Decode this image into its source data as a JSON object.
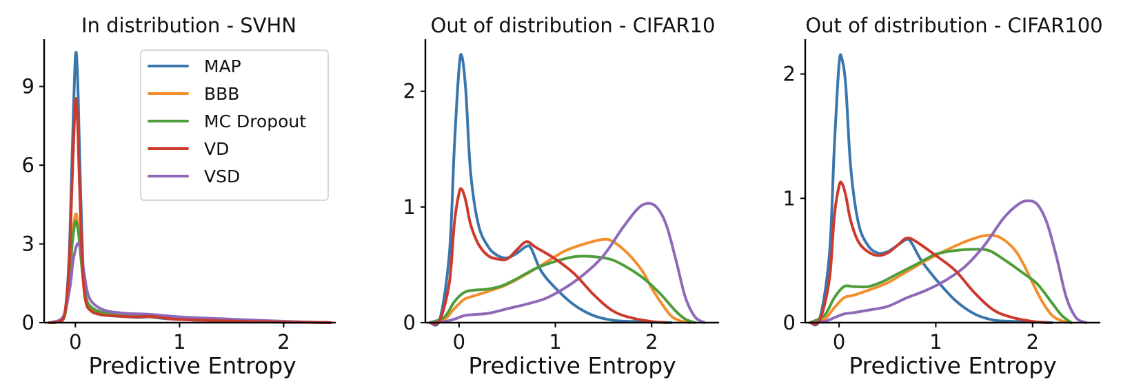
{
  "colors": {
    "MAP": "#3a76ad",
    "BBB": "#f28e2c",
    "MC Dropout": "#4f9d3a",
    "VD": "#cc3a2e",
    "VSD": "#8e69b8"
  },
  "chart_data": [
    {
      "type": "line",
      "title": "In distribution - SVHN",
      "xlabel": "Predictive Entropy",
      "ylabel": "",
      "xlim": [
        -0.3,
        2.5
      ],
      "ylim": [
        0,
        10.8
      ],
      "xticks": [
        0,
        1,
        2
      ],
      "yticks": [
        0,
        3,
        6,
        9
      ],
      "legend": {
        "placement": "top-right",
        "entries": [
          "MAP",
          "BBB",
          "MC Dropout",
          "VD",
          "VSD"
        ]
      },
      "grid": false,
      "series": [
        {
          "name": "MAP",
          "x": [
            -0.25,
            -0.15,
            -0.1,
            -0.06,
            -0.03,
            0,
            0.02,
            0.04,
            0.07,
            0.1,
            0.15,
            0.25,
            0.4,
            0.6,
            0.7,
            0.8,
            1.0,
            1.5,
            2.0,
            2.3,
            2.45
          ],
          "y": [
            0,
            0.05,
            0.4,
            2.5,
            6.5,
            10.1,
            9.5,
            6.5,
            2.5,
            0.9,
            0.45,
            0.3,
            0.25,
            0.2,
            0.22,
            0.18,
            0.12,
            0.06,
            0.02,
            0.01,
            0
          ]
        },
        {
          "name": "BBB",
          "x": [
            -0.25,
            -0.15,
            -0.1,
            -0.06,
            -0.03,
            0,
            0.02,
            0.05,
            0.08,
            0.12,
            0.2,
            0.3,
            0.5,
            0.7,
            0.9,
            1.2,
            1.6,
            2.0,
            2.3,
            2.45
          ],
          "y": [
            0,
            0.05,
            0.3,
            1.5,
            3.2,
            4.1,
            3.9,
            2.8,
            1.4,
            0.7,
            0.45,
            0.35,
            0.25,
            0.25,
            0.18,
            0.12,
            0.08,
            0.04,
            0.01,
            0
          ]
        },
        {
          "name": "MC Dropout",
          "x": [
            -0.25,
            -0.15,
            -0.1,
            -0.06,
            -0.03,
            0,
            0.03,
            0.06,
            0.1,
            0.15,
            0.25,
            0.4,
            0.6,
            0.8,
            1.0,
            1.4,
            1.8,
            2.2,
            2.45
          ],
          "y": [
            0,
            0.05,
            0.3,
            1.5,
            3.0,
            3.85,
            3.4,
            2.2,
            1.0,
            0.6,
            0.4,
            0.3,
            0.25,
            0.2,
            0.15,
            0.1,
            0.06,
            0.02,
            0
          ]
        },
        {
          "name": "VD",
          "x": [
            -0.25,
            -0.15,
            -0.1,
            -0.06,
            -0.03,
            0,
            0.02,
            0.04,
            0.07,
            0.1,
            0.15,
            0.25,
            0.4,
            0.6,
            0.7,
            0.85,
            1.0,
            1.5,
            2.0,
            2.3,
            2.45
          ],
          "y": [
            0,
            0.05,
            0.4,
            2.2,
            5.5,
            8.4,
            7.8,
            5.2,
            2.0,
            0.8,
            0.45,
            0.3,
            0.25,
            0.22,
            0.24,
            0.18,
            0.12,
            0.06,
            0.02,
            0.01,
            0
          ]
        },
        {
          "name": "VSD",
          "x": [
            -0.25,
            -0.15,
            -0.1,
            -0.05,
            -0.02,
            0.02,
            0.05,
            0.08,
            0.12,
            0.18,
            0.3,
            0.5,
            0.7,
            1.0,
            1.4,
            1.8,
            2.1,
            2.35,
            2.45
          ],
          "y": [
            0,
            0.1,
            0.4,
            1.4,
            2.4,
            3.0,
            2.8,
            2.0,
            1.1,
            0.7,
            0.45,
            0.35,
            0.32,
            0.22,
            0.15,
            0.08,
            0.04,
            0.01,
            0
          ]
        }
      ]
    },
    {
      "type": "line",
      "title": "Out of distribution - CIFAR10",
      "xlabel": "Predictive Entropy",
      "ylabel": "",
      "xlim": [
        -0.35,
        2.7
      ],
      "ylim": [
        0,
        2.45
      ],
      "xticks": [
        0,
        1,
        2
      ],
      "yticks": [
        0,
        1,
        2
      ],
      "grid": false,
      "series": [
        {
          "name": "MAP",
          "x": [
            -0.3,
            -0.2,
            -0.1,
            -0.05,
            0,
            0.03,
            0.07,
            0.12,
            0.2,
            0.3,
            0.4,
            0.5,
            0.6,
            0.7,
            0.75,
            0.85,
            1.0,
            1.2,
            1.4,
            1.6,
            1.8,
            2.0,
            2.2
          ],
          "y": [
            0,
            0.03,
            0.6,
            1.5,
            2.2,
            2.3,
            2.0,
            1.3,
            0.85,
            0.66,
            0.58,
            0.56,
            0.6,
            0.66,
            0.64,
            0.45,
            0.3,
            0.15,
            0.06,
            0.02,
            0.01,
            0.005,
            0
          ]
        },
        {
          "name": "BBB",
          "x": [
            -0.3,
            -0.15,
            -0.05,
            0.05,
            0.15,
            0.3,
            0.5,
            0.7,
            0.9,
            1.1,
            1.3,
            1.5,
            1.6,
            1.75,
            1.9,
            2.0,
            2.1,
            2.2,
            2.3,
            2.4
          ],
          "y": [
            0,
            0.03,
            0.12,
            0.2,
            0.23,
            0.27,
            0.33,
            0.42,
            0.52,
            0.62,
            0.68,
            0.72,
            0.7,
            0.6,
            0.45,
            0.3,
            0.17,
            0.06,
            0.015,
            0
          ]
        },
        {
          "name": "MC Dropout",
          "x": [
            -0.3,
            -0.15,
            -0.05,
            0.05,
            0.15,
            0.3,
            0.45,
            0.6,
            0.8,
            1.0,
            1.2,
            1.4,
            1.6,
            1.8,
            1.95,
            2.1,
            2.25,
            2.35,
            2.45
          ],
          "y": [
            0,
            0.05,
            0.18,
            0.26,
            0.28,
            0.29,
            0.32,
            0.38,
            0.47,
            0.53,
            0.57,
            0.57,
            0.54,
            0.45,
            0.36,
            0.24,
            0.1,
            0.03,
            0
          ]
        },
        {
          "name": "VD",
          "x": [
            -0.3,
            -0.2,
            -0.1,
            -0.05,
            0,
            0.03,
            0.07,
            0.12,
            0.2,
            0.3,
            0.4,
            0.5,
            0.6,
            0.7,
            0.8,
            1.0,
            1.2,
            1.4,
            1.6,
            1.8,
            2.0,
            2.15
          ],
          "y": [
            0,
            0.02,
            0.35,
            0.85,
            1.12,
            1.15,
            1.05,
            0.85,
            0.68,
            0.58,
            0.55,
            0.55,
            0.63,
            0.7,
            0.65,
            0.55,
            0.42,
            0.24,
            0.1,
            0.04,
            0.01,
            0
          ]
        },
        {
          "name": "VSD",
          "x": [
            -0.3,
            -0.15,
            -0.05,
            0.05,
            0.15,
            0.3,
            0.5,
            0.7,
            0.9,
            1.1,
            1.3,
            1.5,
            1.7,
            1.85,
            1.95,
            2.05,
            2.15,
            2.25,
            2.35,
            2.45,
            2.55
          ],
          "y": [
            0,
            0.01,
            0.03,
            0.06,
            0.07,
            0.08,
            0.12,
            0.16,
            0.21,
            0.3,
            0.42,
            0.58,
            0.82,
            0.98,
            1.03,
            1.0,
            0.85,
            0.55,
            0.22,
            0.05,
            0
          ]
        }
      ]
    },
    {
      "type": "line",
      "title": "Out of distribution - CIFAR100",
      "xlabel": "Predictive Entropy",
      "ylabel": "",
      "xlim": [
        -0.35,
        2.7
      ],
      "ylim": [
        0,
        2.28
      ],
      "xticks": [
        0,
        1,
        2
      ],
      "yticks": [
        0,
        1,
        2
      ],
      "grid": false,
      "series": [
        {
          "name": "MAP",
          "x": [
            -0.3,
            -0.2,
            -0.1,
            -0.05,
            0,
            0.03,
            0.07,
            0.12,
            0.2,
            0.3,
            0.4,
            0.5,
            0.6,
            0.7,
            0.75,
            0.85,
            1.0,
            1.2,
            1.4,
            1.6,
            1.8,
            2.0,
            2.2
          ],
          "y": [
            0,
            0.03,
            0.55,
            1.4,
            2.08,
            2.12,
            1.9,
            1.25,
            0.8,
            0.62,
            0.56,
            0.57,
            0.62,
            0.67,
            0.64,
            0.5,
            0.35,
            0.18,
            0.07,
            0.02,
            0.01,
            0.005,
            0
          ]
        },
        {
          "name": "BBB",
          "x": [
            -0.3,
            -0.15,
            -0.05,
            0.05,
            0.15,
            0.3,
            0.5,
            0.7,
            0.9,
            1.1,
            1.3,
            1.5,
            1.65,
            1.8,
            1.9,
            2.0,
            2.1,
            2.2,
            2.3,
            2.4
          ],
          "y": [
            0,
            0.03,
            0.12,
            0.2,
            0.22,
            0.26,
            0.32,
            0.41,
            0.5,
            0.58,
            0.65,
            0.7,
            0.69,
            0.6,
            0.48,
            0.32,
            0.17,
            0.06,
            0.015,
            0
          ]
        },
        {
          "name": "MC Dropout",
          "x": [
            -0.3,
            -0.15,
            -0.05,
            0.05,
            0.15,
            0.3,
            0.45,
            0.6,
            0.8,
            1.0,
            1.2,
            1.4,
            1.55,
            1.7,
            1.9,
            2.05,
            2.2,
            2.3,
            2.4
          ],
          "y": [
            0,
            0.06,
            0.2,
            0.29,
            0.29,
            0.29,
            0.33,
            0.39,
            0.47,
            0.55,
            0.58,
            0.59,
            0.58,
            0.51,
            0.4,
            0.31,
            0.16,
            0.06,
            0
          ]
        },
        {
          "name": "VD",
          "x": [
            -0.3,
            -0.2,
            -0.1,
            -0.05,
            0,
            0.03,
            0.07,
            0.12,
            0.2,
            0.3,
            0.4,
            0.5,
            0.6,
            0.7,
            0.8,
            1.0,
            1.2,
            1.4,
            1.6,
            1.8,
            2.0,
            2.15
          ],
          "y": [
            0,
            0.02,
            0.35,
            0.85,
            1.1,
            1.12,
            1.02,
            0.82,
            0.65,
            0.57,
            0.54,
            0.56,
            0.62,
            0.68,
            0.65,
            0.54,
            0.42,
            0.24,
            0.1,
            0.04,
            0.01,
            0
          ]
        },
        {
          "name": "VSD",
          "x": [
            -0.3,
            -0.15,
            -0.05,
            0.05,
            0.15,
            0.3,
            0.5,
            0.7,
            0.9,
            1.1,
            1.3,
            1.5,
            1.7,
            1.85,
            1.95,
            2.05,
            2.15,
            2.25,
            2.35,
            2.45,
            2.55
          ],
          "y": [
            0,
            0.01,
            0.04,
            0.07,
            0.08,
            0.1,
            0.13,
            0.2,
            0.26,
            0.34,
            0.45,
            0.62,
            0.84,
            0.95,
            0.98,
            0.95,
            0.8,
            0.52,
            0.2,
            0.04,
            0
          ]
        }
      ]
    }
  ]
}
